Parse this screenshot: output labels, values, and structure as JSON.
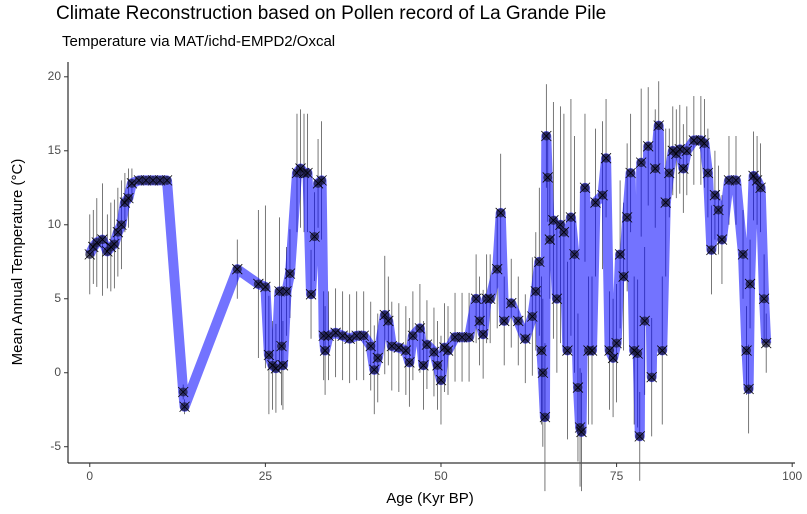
{
  "chart_data": {
    "type": "line",
    "title": "Climate Reconstruction based on Pollen record of La Grande Pile",
    "subtitle": "Temperature via MAT/ichd-EMPD2/Oxcal",
    "x_label": "Age (Kyr BP)",
    "y_label": "Mean Annual Temperature (°C)",
    "x": [
      0,
      0.5,
      1,
      1.8,
      2.5,
      3,
      3.5,
      4,
      4.5,
      5,
      5.5,
      6,
      7,
      8,
      9,
      10,
      11,
      13.3,
      13.5,
      21,
      24,
      25,
      25.5,
      26,
      26.5,
      27,
      27.3,
      27.5,
      28,
      28.5,
      29.5,
      30,
      30.5,
      31,
      31.5,
      32,
      32.5,
      33,
      33.3,
      33.5,
      34,
      35,
      36,
      37,
      38,
      39,
      40,
      40.5,
      41,
      42,
      42.5,
      43,
      44,
      45,
      45.5,
      46,
      47,
      47.5,
      48,
      49,
      49.5,
      50,
      50.5,
      51,
      52,
      53,
      54,
      55,
      55.5,
      56,
      56.5,
      57,
      58,
      58.5,
      59,
      60,
      61,
      62,
      63,
      63.5,
      64,
      64.3,
      64.5,
      64.8,
      65,
      65.2,
      65.5,
      66,
      66.5,
      67,
      67.5,
      68,
      68.5,
      69,
      69.5,
      69.8,
      70,
      70.5,
      71,
      71.5,
      72,
      73,
      73.5,
      74,
      74.5,
      75,
      75.5,
      76,
      76.5,
      77,
      77.5,
      78,
      78.3,
      78.5,
      79,
      79.5,
      80,
      80.5,
      81,
      81.5,
      82,
      82.5,
      83,
      83.5,
      84,
      84.5,
      85,
      86,
      87,
      87.5,
      88,
      88.5,
      89,
      89.5,
      90,
      91,
      92,
      93,
      93.5,
      93.8,
      94,
      94.5,
      95,
      95.5,
      96,
      96.3
    ],
    "values": [
      8,
      8.5,
      8.8,
      9,
      8.2,
      8.5,
      8.7,
      9.5,
      10,
      11.5,
      11.8,
      12.8,
      13,
      13,
      13,
      13,
      13,
      -1.3,
      -2.3,
      7,
      6,
      5.8,
      1.2,
      0.5,
      0.3,
      5.5,
      1.8,
      0.5,
      5.5,
      6.7,
      13.5,
      13.8,
      13.5,
      13.5,
      5.3,
      9.2,
      12.8,
      13,
      2.5,
      1.5,
      2.5,
      2.7,
      2.5,
      2.3,
      2.5,
      2.5,
      1.8,
      0.2,
      1,
      3.9,
      3.5,
      1.8,
      1.7,
      1.5,
      0.7,
      2.5,
      3,
      0.5,
      1.9,
      1.4,
      0.5,
      -0.5,
      1.7,
      1.5,
      2.4,
      2.4,
      2.4,
      5,
      3.5,
      2.6,
      5,
      5,
      7,
      10.8,
      3.5,
      4.7,
      3.5,
      2.3,
      3.8,
      5.5,
      7.5,
      1.5,
      0,
      -3,
      16,
      13.2,
      9,
      10.3,
      5,
      10,
      9.5,
      1.5,
      10.5,
      8,
      -1,
      -3.7,
      -4,
      12.5,
      1.5,
      1.5,
      11.5,
      12,
      14.5,
      1.5,
      1,
      2,
      8,
      6.5,
      10.5,
      13.5,
      1.5,
      1.3,
      -4.3,
      14.2,
      3.5,
      15.3,
      -0.3,
      13.8,
      16.7,
      1.5,
      11.5,
      13.5,
      15,
      14.8,
      15.1,
      13.8,
      15,
      15.7,
      15.7,
      15.5,
      13.5,
      8.3,
      12,
      11,
      9,
      13,
      13,
      8,
      1.5,
      -1.1,
      6,
      13.3,
      13,
      12.5,
      5,
      2
    ],
    "errors": [
      2.7,
      2.5,
      3,
      3.8,
      2.5,
      3,
      3,
      3,
      3,
      2,
      2,
      1,
      0.3,
      0.3,
      0.3,
      0.3,
      0.3,
      0.5,
      0.5,
      2,
      5,
      5.5,
      4,
      3,
      3,
      5,
      4,
      3,
      3,
      3,
      4,
      4,
      4,
      4,
      3,
      3,
      3,
      4,
      3,
      3,
      3,
      3,
      3,
      3,
      3,
      3,
      3,
      3,
      3,
      4,
      3,
      3,
      3,
      3,
      3,
      3,
      3,
      3,
      3,
      3,
      3,
      3,
      3,
      3,
      3,
      3,
      3,
      3,
      3,
      3,
      3,
      3,
      4,
      4,
      3,
      3,
      3,
      3,
      4,
      4,
      5,
      5,
      5,
      5,
      3.5,
      3,
      4,
      8,
      5,
      8,
      8,
      6,
      8,
      8,
      5,
      4,
      4,
      5,
      5,
      5,
      5,
      5,
      4,
      4,
      4,
      4,
      5,
      5,
      5,
      4,
      5,
      5,
      3,
      5,
      5,
      4,
      4,
      4,
      3,
      5,
      5,
      3,
      3,
      3,
      3,
      3,
      3,
      3,
      3,
      3,
      3,
      3,
      3,
      3,
      3,
      3,
      3,
      3,
      3,
      3,
      3,
      3,
      3,
      3,
      3,
      2
    ],
    "line_color": "#0000ff",
    "point_color": "#1a1a40",
    "error_color": "#555555",
    "xlim": [
      -3.1,
      100.4
    ],
    "ylim": [
      -6.1,
      21.0
    ],
    "xticks": [
      0,
      25,
      50,
      75,
      100
    ],
    "yticks": [
      -5,
      0,
      5,
      10,
      15,
      20
    ],
    "grid": false
  }
}
